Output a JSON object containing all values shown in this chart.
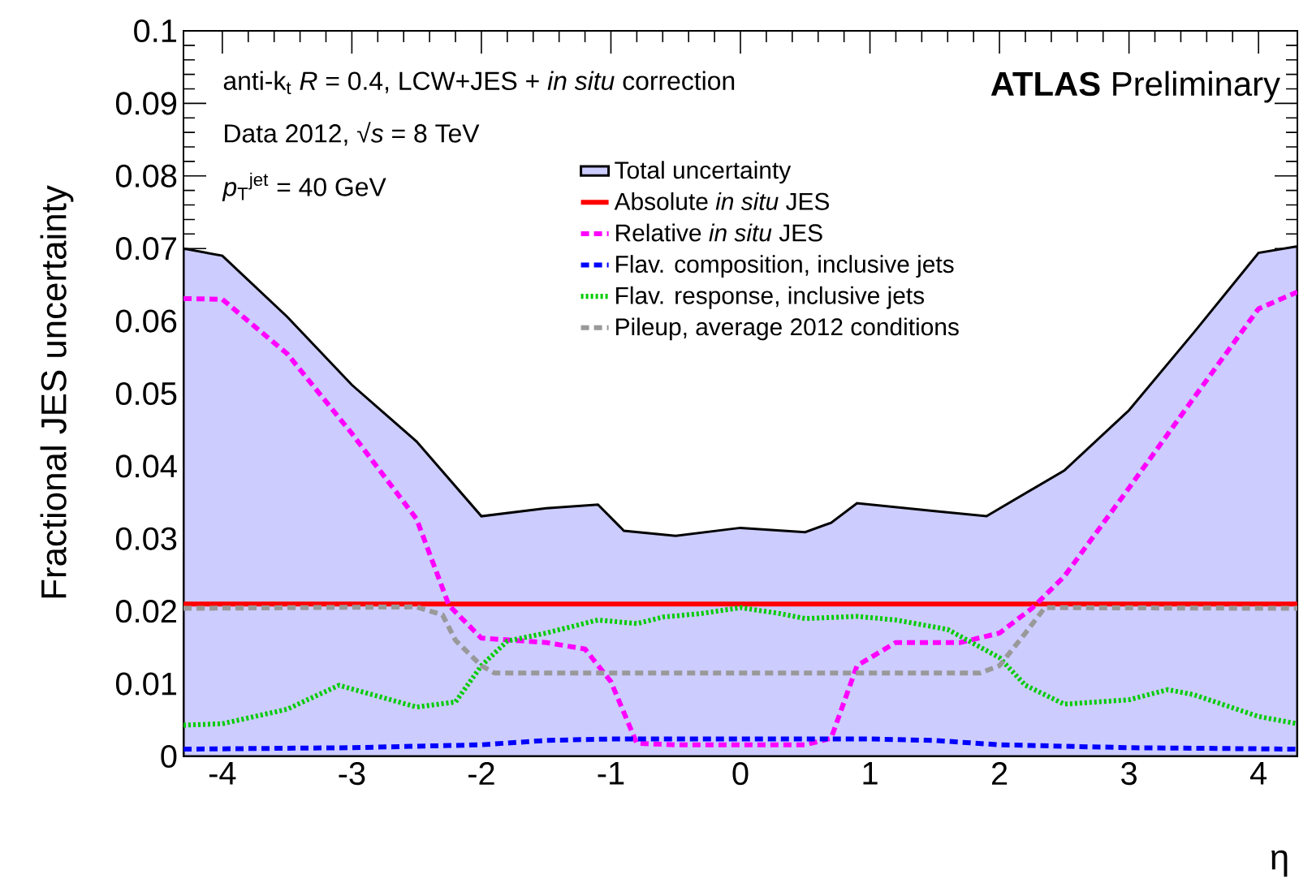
{
  "chart_data": {
    "type": "line",
    "xlabel": "η",
    "ylabel": "Fractional JES uncertainty",
    "annotations": [
      "anti-k$_{t}$ *R* = 0.4, LCW+JES + *in situ* correction",
      "Data 2012, √*s* = 8 TeV",
      "*p*$_{T}$$^{jet}$ = 40 GeV",
      "**ATLAS** Preliminary"
    ],
    "xlim": [
      -4.3,
      4.3
    ],
    "ylim": [
      0,
      0.1
    ],
    "xticks": [
      -4,
      -3,
      -2,
      -1,
      0,
      1,
      2,
      3,
      4
    ],
    "yticks": [
      0,
      0.01,
      0.02,
      0.03,
      0.04,
      0.05,
      0.06,
      0.07,
      0.08,
      0.09,
      0.1
    ],
    "legend": "top",
    "marker": "none",
    "series": [
      {
        "name": "Total uncertainty",
        "type": "area",
        "color": "#ccccff",
        "x": [
          -4.3,
          -4.0,
          -3.5,
          -3.0,
          -2.5,
          -2.0,
          -1.5,
          -1.1,
          -0.9,
          -0.5,
          0,
          0.5,
          0.7,
          0.9,
          1.5,
          1.9,
          2.5,
          3.0,
          3.5,
          4.0,
          4.3
        ],
        "values": [
          0.07,
          0.069,
          0.0606,
          0.0512,
          0.0434,
          0.0331,
          0.0342,
          0.0347,
          0.0311,
          0.0304,
          0.0315,
          0.0309,
          0.0322,
          0.0349,
          0.0338,
          0.0331,
          0.0394,
          0.0477,
          0.0584,
          0.0694,
          0.0703
        ]
      },
      {
        "name": "Absolute *in situ* JES",
        "color": "#ff0000",
        "line_style": "solid",
        "x": [
          -4.3,
          4.3
        ],
        "values": [
          0.021,
          0.021
        ]
      },
      {
        "name": "Relative *in situ* JES",
        "color": "#ff00ff",
        "line_style": "dashed",
        "x": [
          -4.3,
          -4.0,
          -3.5,
          -3.0,
          -2.5,
          -2.25,
          -2.0,
          -1.5,
          -1.2,
          -1.0,
          -0.8,
          -0.5,
          0,
          0.5,
          0.7,
          0.9,
          1.2,
          1.7,
          2.0,
          2.25,
          2.5,
          3.0,
          3.5,
          4.0,
          4.3
        ],
        "values": [
          0.0631,
          0.063,
          0.0555,
          0.0445,
          0.0327,
          0.0208,
          0.0163,
          0.0157,
          0.0148,
          0.0103,
          0.0018,
          0.0016,
          0.0016,
          0.0016,
          0.0025,
          0.0125,
          0.0157,
          0.0157,
          0.017,
          0.0204,
          0.0248,
          0.037,
          0.0494,
          0.0617,
          0.064
        ]
      },
      {
        "name": "Flav. composition, inclusive jets",
        "color": "#0000ff",
        "line_style": "dashed",
        "x": [
          -4.3,
          -3.0,
          -2.0,
          -1.5,
          -1.0,
          0,
          1.0,
          1.5,
          2.0,
          3.0,
          4.3
        ],
        "values": [
          0.001,
          0.0012,
          0.0016,
          0.0022,
          0.0024,
          0.0024,
          0.0024,
          0.0022,
          0.0016,
          0.0012,
          0.001
        ]
      },
      {
        "name": "Flav. response, inclusive jets",
        "color": "#00cc00",
        "line_style": "dotted",
        "x": [
          -4.3,
          -4.0,
          -3.5,
          -3.1,
          -2.5,
          -2.2,
          -2.0,
          -1.8,
          -1.5,
          -1.1,
          -0.8,
          -0.6,
          -0.3,
          0,
          0.3,
          0.5,
          0.9,
          1.2,
          1.6,
          2.0,
          2.2,
          2.5,
          3.0,
          3.3,
          3.5,
          4.0,
          4.3
        ],
        "values": [
          0.0043,
          0.0045,
          0.0065,
          0.0098,
          0.0068,
          0.0075,
          0.0125,
          0.0159,
          0.017,
          0.0188,
          0.0183,
          0.0192,
          0.0197,
          0.0205,
          0.0197,
          0.019,
          0.0193,
          0.0188,
          0.0175,
          0.0136,
          0.0098,
          0.0072,
          0.0078,
          0.0092,
          0.0085,
          0.0055,
          0.0045
        ]
      },
      {
        "name": "Pileup, average 2012 conditions",
        "color": "#999999",
        "line_style": "dashed",
        "x": [
          -4.3,
          -2.5,
          -2.3,
          -2.2,
          -2.0,
          -1.9,
          1.85,
          2.0,
          2.2,
          2.35,
          4.3
        ],
        "values": [
          0.0204,
          0.0206,
          0.0195,
          0.016,
          0.0125,
          0.0115,
          0.0115,
          0.0125,
          0.017,
          0.0205,
          0.0204
        ]
      }
    ]
  }
}
